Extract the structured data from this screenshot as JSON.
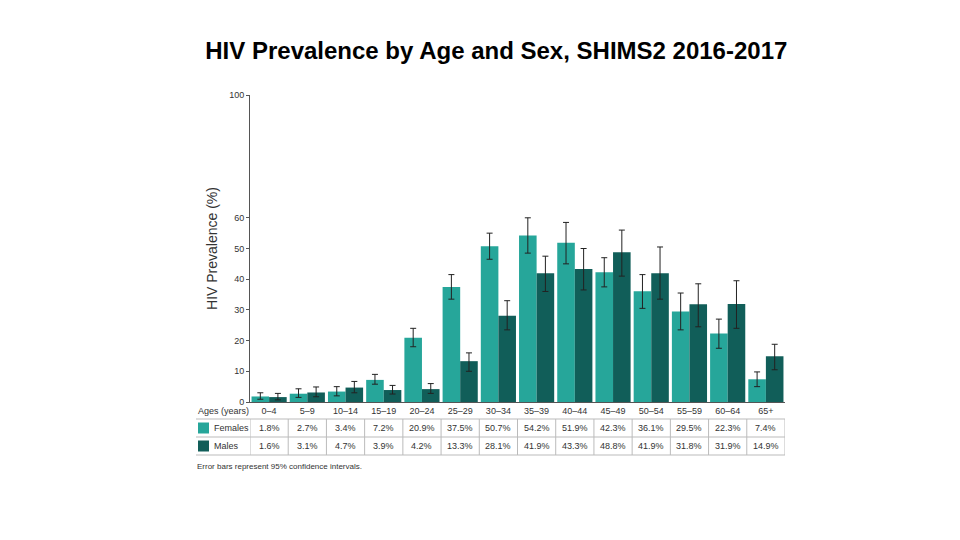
{
  "chart_data": {
    "type": "bar",
    "title": "HIV Prevalence by Age and Sex, SHIMS2 2016-2017",
    "y_label": "HIV Prevalence (%)",
    "x_label": "Ages (years)",
    "note": "Error bars represent 95% confidence intervals.",
    "categories": [
      "0–4",
      "5–9",
      "10–14",
      "15–19",
      "20–24",
      "25–29",
      "30–34",
      "35–39",
      "40–44",
      "45–49",
      "50–54",
      "55–59",
      "60–64",
      "65+"
    ],
    "series": [
      {
        "name": "Females",
        "color": "#26a69a",
        "values": [
          1.8,
          2.7,
          3.4,
          7.2,
          20.9,
          37.5,
          50.7,
          54.2,
          51.9,
          42.3,
          36.1,
          29.5,
          22.3,
          7.4
        ],
        "value_labels": [
          "1.8%",
          "2.7%",
          "3.4%",
          "7.2%",
          "20.9%",
          "37.5%",
          "50.7%",
          "54.2%",
          "51.9%",
          "42.3%",
          "36.1%",
          "29.5%",
          "22.3%",
          "7.4%"
        ],
        "ci_low": [
          0.9,
          1.5,
          2.0,
          5.8,
          18.0,
          33.5,
          46.5,
          48.5,
          45.0,
          37.5,
          30.5,
          23.5,
          17.5,
          5.0
        ],
        "ci_high": [
          3.0,
          4.3,
          5.0,
          9.0,
          24.0,
          41.5,
          55.0,
          60.0,
          58.5,
          47.0,
          41.5,
          35.5,
          27.0,
          9.8
        ]
      },
      {
        "name": "Males",
        "color": "#115e59",
        "values": [
          1.6,
          3.1,
          4.7,
          3.9,
          4.2,
          13.3,
          28.1,
          41.9,
          43.3,
          48.8,
          41.9,
          31.8,
          31.9,
          14.9
        ],
        "value_labels": [
          "1.6%",
          "3.1%",
          "4.7%",
          "3.9%",
          "4.2%",
          "13.3%",
          "28.1%",
          "41.9%",
          "43.3%",
          "48.8%",
          "41.9%",
          "31.8%",
          "31.9%",
          "14.9%"
        ],
        "ci_low": [
          0.7,
          1.7,
          3.0,
          2.6,
          2.8,
          10.0,
          23.5,
          36.0,
          36.5,
          41.0,
          33.5,
          24.5,
          24.0,
          10.5
        ],
        "ci_high": [
          2.8,
          4.9,
          6.7,
          5.4,
          6.0,
          16.0,
          33.0,
          47.5,
          50.0,
          56.0,
          50.5,
          38.5,
          39.5,
          18.8
        ]
      }
    ],
    "ylim": [
      0,
      100
    ],
    "yticks": [
      0,
      10,
      20,
      30,
      40,
      50,
      60,
      100
    ],
    "grid": false
  }
}
